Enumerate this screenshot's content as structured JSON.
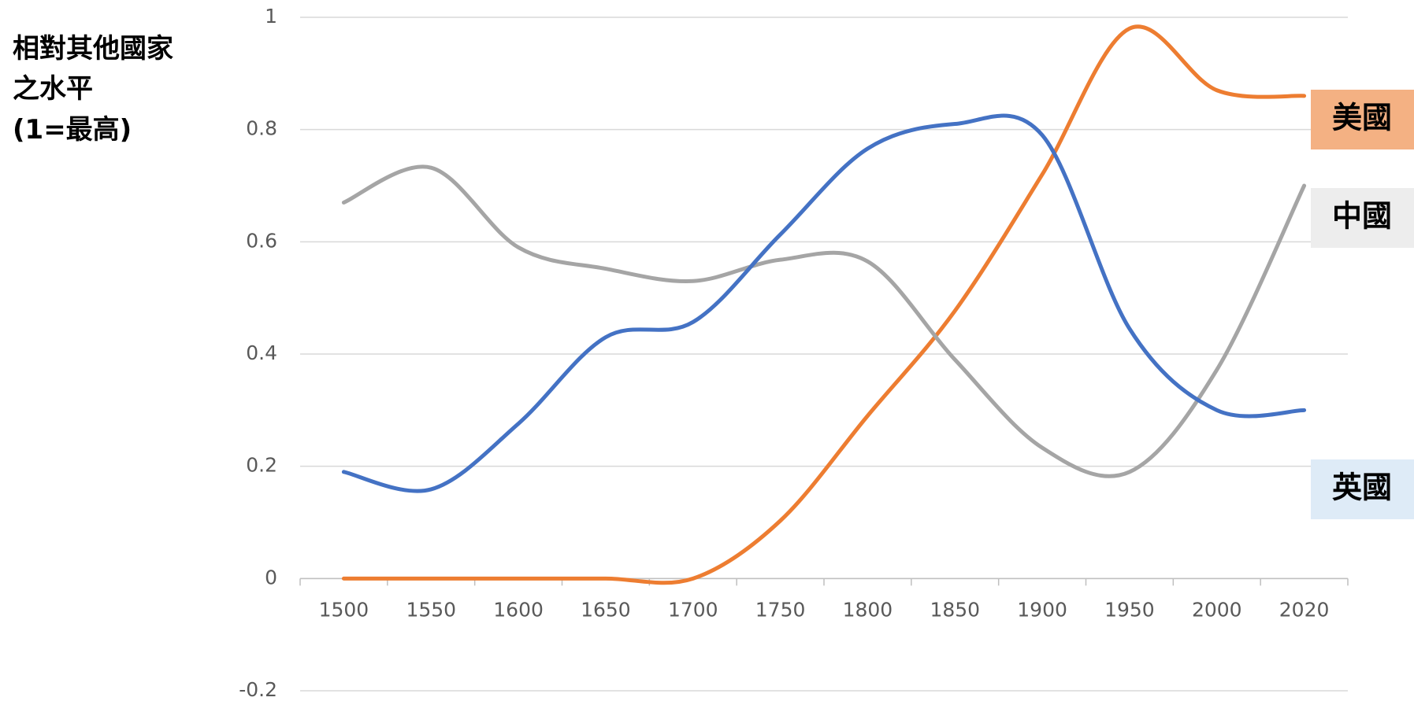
{
  "chart_data": {
    "type": "line",
    "ylabel_lines": [
      "相對其他國家",
      "之水平",
      "(1=最高)"
    ],
    "categories": [
      "1500",
      "1550",
      "1600",
      "1650",
      "1700",
      "1750",
      "1800",
      "1850",
      "1900",
      "1950",
      "2000",
      "2020"
    ],
    "series": [
      {
        "name": "美國",
        "color": "#ed7d31",
        "label_bg": "#f4b183",
        "values": [
          0,
          0,
          0,
          0,
          0,
          0.103,
          0.29,
          0.477,
          0.72,
          0.98,
          0.87,
          0.86
        ]
      },
      {
        "name": "中國",
        "color": "#a5a5a5",
        "label_bg": "#ededed",
        "values": [
          0.67,
          0.732,
          0.59,
          0.552,
          0.53,
          0.568,
          0.565,
          0.39,
          0.233,
          0.19,
          0.372,
          0.7
        ]
      },
      {
        "name": "英國",
        "color": "#4472c4",
        "label_bg": "#deebf7",
        "values": [
          0.19,
          0.159,
          0.276,
          0.43,
          0.457,
          0.613,
          0.766,
          0.81,
          0.79,
          0.445,
          0.3,
          0.3
        ]
      }
    ],
    "ylim": [
      -0.2,
      1
    ],
    "yticks": [
      -0.2,
      0,
      0.2,
      0.4,
      0.6,
      0.8,
      1
    ],
    "grid": true
  }
}
